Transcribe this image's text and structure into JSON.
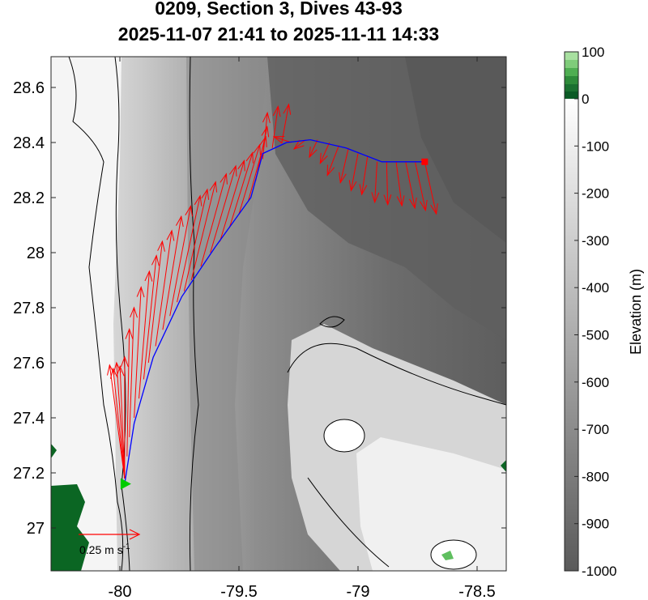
{
  "title": {
    "line1": "0209, Section 3, Dives 43-93",
    "line2": "2025-11-07 21:41 to 2025-11-11 14:33"
  },
  "chart_data": {
    "type": "map",
    "xlim": [
      -80.3,
      -78.45
    ],
    "ylim": [
      26.85,
      28.72
    ],
    "x_ticks": [
      -80,
      -79.5,
      -79,
      -78.5
    ],
    "x_tick_labels": [
      "-80",
      "-79.5",
      "-79",
      "-78.5"
    ],
    "y_ticks": [
      27,
      27.2,
      27.4,
      27.6,
      27.8,
      28,
      28.2,
      28.4,
      28.6
    ],
    "y_tick_labels": [
      "27",
      "27.2",
      "27.4",
      "27.6",
      "27.8",
      "28",
      "28.2",
      "28.4",
      "28.6"
    ],
    "colorbar": {
      "label": "Elevation (m)",
      "range": [
        -1000,
        100
      ],
      "ticks": [
        100,
        0,
        -100,
        -200,
        -300,
        -400,
        -500,
        -600,
        -700,
        -800,
        -900,
        -1000
      ],
      "tick_labels": [
        "100",
        "0",
        "-100",
        "-200",
        "-300",
        "-400",
        "-500",
        "-600",
        "-700",
        "-800",
        "-900",
        "-1000"
      ]
    },
    "track": [
      [
        -79.98,
        27.16
      ],
      [
        -79.94,
        27.38
      ],
      [
        -79.86,
        27.62
      ],
      [
        -79.74,
        27.84
      ],
      [
        -79.6,
        28.02
      ],
      [
        -79.45,
        28.2
      ],
      [
        -79.4,
        28.36
      ],
      [
        -79.3,
        28.4
      ],
      [
        -79.2,
        28.41
      ],
      [
        -79.05,
        28.38
      ],
      [
        -78.9,
        28.33
      ],
      [
        -78.72,
        28.33
      ]
    ],
    "start": [
      -79.98,
      27.16
    ],
    "end": [
      -78.72,
      28.33
    ],
    "current_vectors": [
      [
        -79.98,
        27.18,
        -0.13,
        0.98
      ],
      [
        -79.98,
        27.18,
        -0.1,
        0.95
      ],
      [
        -79.98,
        27.18,
        -0.07,
        1.0
      ],
      [
        -79.98,
        27.18,
        -0.04,
        0.97
      ],
      [
        -79.98,
        27.18,
        0.0,
        1.05
      ],
      [
        -79.97,
        27.26,
        0.02,
        1.1
      ],
      [
        -79.96,
        27.33,
        0.04,
        1.12
      ],
      [
        -79.94,
        27.4,
        0.06,
        1.13
      ],
      [
        -79.92,
        27.47,
        0.09,
        1.1
      ],
      [
        -79.9,
        27.54,
        0.11,
        1.07
      ],
      [
        -79.88,
        27.6,
        0.12,
        1.05
      ],
      [
        -79.85,
        27.66,
        0.14,
        1.0
      ],
      [
        -79.82,
        27.72,
        0.16,
        0.98
      ],
      [
        -79.79,
        27.77,
        0.18,
        0.95
      ],
      [
        -79.76,
        27.82,
        0.2,
        0.92
      ],
      [
        -79.73,
        27.86,
        0.2,
        0.88
      ],
      [
        -79.7,
        27.9,
        0.21,
        0.85
      ],
      [
        -79.66,
        27.95,
        0.22,
        0.8
      ],
      [
        -79.62,
        28.0,
        0.22,
        0.75
      ],
      [
        -79.58,
        28.04,
        0.21,
        0.7
      ],
      [
        -79.54,
        28.09,
        0.2,
        0.65
      ],
      [
        -79.5,
        28.14,
        0.18,
        0.6
      ],
      [
        -79.46,
        28.19,
        0.15,
        0.55
      ],
      [
        -79.43,
        28.26,
        0.1,
        0.47
      ],
      [
        -79.4,
        28.34,
        0.04,
        0.4
      ],
      [
        -79.36,
        28.38,
        0.05,
        0.36
      ],
      [
        -79.32,
        28.4,
        0.06,
        0.33
      ],
      [
        -79.28,
        28.4,
        -0.15,
        0.05
      ],
      [
        -79.22,
        28.41,
        -0.1,
        -0.08
      ],
      [
        -79.17,
        28.41,
        -0.07,
        -0.15
      ],
      [
        -79.12,
        28.4,
        -0.08,
        -0.18
      ],
      [
        -79.08,
        28.39,
        -0.1,
        -0.26
      ],
      [
        -79.04,
        28.38,
        -0.07,
        -0.3
      ],
      [
        -79.0,
        28.36,
        -0.06,
        -0.32
      ],
      [
        -78.96,
        28.35,
        -0.05,
        -0.33
      ],
      [
        -78.92,
        28.33,
        -0.02,
        -0.35
      ],
      [
        -78.88,
        28.33,
        0.01,
        -0.37
      ],
      [
        -78.84,
        28.33,
        0.05,
        -0.38
      ],
      [
        -78.8,
        28.33,
        0.08,
        -0.4
      ],
      [
        -78.76,
        28.33,
        0.09,
        -0.42
      ],
      [
        -78.72,
        28.33,
        0.1,
        -0.45
      ]
    ],
    "scale_arrow_label": "0.25 m s",
    "scale_arrow_exponent": "-1",
    "colors": {
      "track": "#0000ff",
      "vectors": "#ff0000",
      "start_marker": "#00cc00",
      "end_marker": "#ff0000",
      "land": "#0b6623"
    }
  }
}
